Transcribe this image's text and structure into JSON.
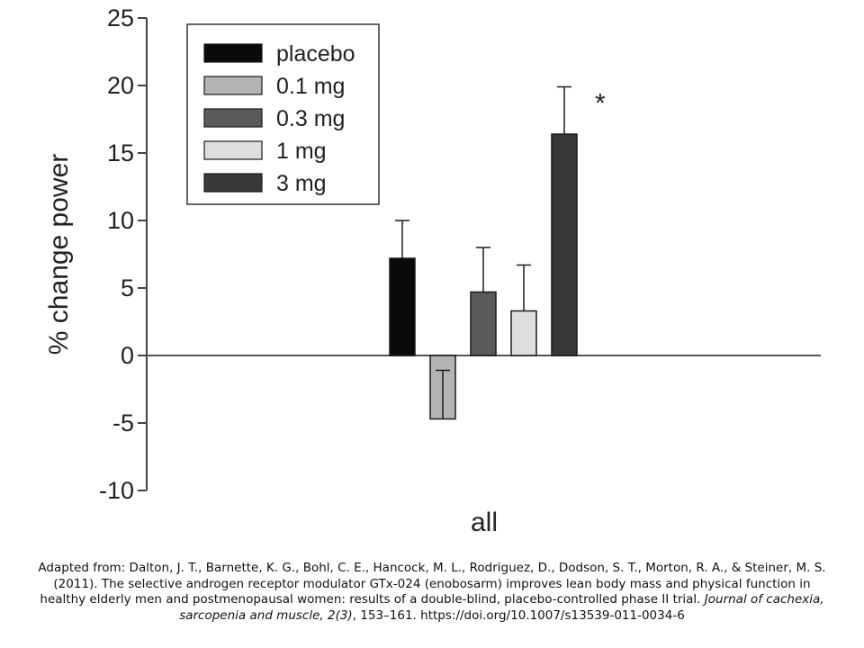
{
  "chart_data": {
    "type": "bar",
    "categories": [
      "all"
    ],
    "xlabel": "all",
    "ylabel": "% change power",
    "ylim": [
      -10,
      25
    ],
    "yticks": [
      25,
      20,
      15,
      10,
      5,
      0,
      -5,
      -10
    ],
    "grid": false,
    "legend_position": "top-left",
    "annotation": "*",
    "series": [
      {
        "name": "placebo",
        "values": [
          7.2
        ],
        "error": [
          2.8
        ],
        "color": "#0a0a0a"
      },
      {
        "name": "0.1 mg",
        "values": [
          -4.7
        ],
        "error": [
          3.6
        ],
        "color": "#b4b4b4"
      },
      {
        "name": "0.3 mg",
        "values": [
          4.7
        ],
        "error": [
          3.3
        ],
        "color": "#5a5a5a"
      },
      {
        "name": "1 mg",
        "values": [
          3.3
        ],
        "error": [
          3.4
        ],
        "color": "#dedede"
      },
      {
        "name": "3 mg",
        "values": [
          16.4
        ],
        "error": [
          3.5
        ],
        "color": "#383838"
      }
    ]
  },
  "citation": {
    "text": "Adapted from: Dalton, J. T., Barnette, K. G., Bohl, C. E., Hancock, M. L., Rodriguez, D., Dodson, S. T., Morton, R. A., & Steiner, M. S. (2011). The selective androgen receptor modulator GTx-024 (enobosarm) improves lean body mass and physical function in healthy elderly men and postmenopausal women: results of a double-blind, placebo-controlled phase II trial. ",
    "journal": "Journal of cachexia, sarcopenia and muscle, 2(3)",
    "tail": ", 153–161. https://doi.org/10.1007/s13539-011-0034-6"
  }
}
